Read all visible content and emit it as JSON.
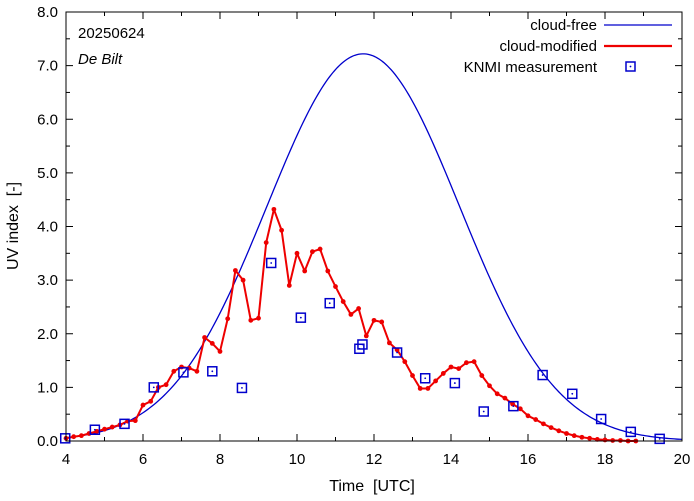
{
  "chart_data": {
    "type": "line",
    "date": "20250624",
    "location": "De Bilt",
    "xlabel": "Time  [UTC]",
    "ylabel": "UV index  [-]",
    "xlim": [
      4,
      20
    ],
    "ylim": [
      0,
      8
    ],
    "x_ticks": [
      4,
      6,
      8,
      10,
      12,
      14,
      16,
      18,
      20
    ],
    "y_ticks": [
      0.0,
      1.0,
      2.0,
      3.0,
      4.0,
      5.0,
      6.0,
      7.0,
      8.0
    ],
    "x_tick_labels": [
      "4",
      "6",
      "8",
      "10",
      "12",
      "14",
      "16",
      "18",
      "20"
    ],
    "y_tick_labels": [
      "0.0",
      "1.0",
      "2.0",
      "3.0",
      "4.0",
      "5.0",
      "6.0",
      "7.0",
      "8.0"
    ],
    "legend": [
      {
        "label": "cloud-free",
        "color": "#0000cc",
        "style": "line"
      },
      {
        "label": "cloud-modified",
        "color": "#ee0000",
        "style": "line-thick"
      },
      {
        "label": "KNMI measurement",
        "color": "#0000cc",
        "style": "square-marker"
      }
    ],
    "series": [
      {
        "name": "cloud-free",
        "color": "#0000cc",
        "model": "gaussian",
        "peak_time": 11.72,
        "peak_value": 7.22,
        "sigma": 2.5,
        "x_range": [
          4,
          20
        ]
      },
      {
        "name": "cloud-modified",
        "color": "#ee0000",
        "x": [
          4.0,
          4.2,
          4.4,
          4.6,
          4.8,
          5.0,
          5.2,
          5.4,
          5.6,
          5.8,
          6.0,
          6.2,
          6.4,
          6.6,
          6.8,
          7.0,
          7.2,
          7.4,
          7.6,
          7.8,
          8.0,
          8.2,
          8.4,
          8.6,
          8.8,
          9.0,
          9.2,
          9.4,
          9.6,
          9.8,
          10.0,
          10.2,
          10.4,
          10.6,
          10.8,
          11.0,
          11.2,
          11.4,
          11.6,
          11.8,
          12.0,
          12.2,
          12.4,
          12.6,
          12.8,
          13.0,
          13.2,
          13.4,
          13.6,
          13.8,
          14.0,
          14.2,
          14.4,
          14.6,
          14.8,
          15.0,
          15.2,
          15.4,
          15.6,
          15.8,
          16.0,
          16.2,
          16.4,
          16.6,
          16.8,
          17.0,
          17.2,
          17.4,
          17.6,
          17.8,
          18.0,
          18.2,
          18.4,
          18.6,
          18.8
        ],
        "values": [
          0.05,
          0.08,
          0.1,
          0.14,
          0.18,
          0.22,
          0.26,
          0.3,
          0.37,
          0.38,
          0.67,
          0.74,
          1.0,
          1.05,
          1.3,
          1.38,
          1.36,
          1.3,
          1.93,
          1.82,
          1.67,
          2.28,
          3.18,
          3.0,
          2.25,
          2.29,
          3.7,
          4.32,
          3.93,
          2.9,
          3.5,
          3.17,
          3.53,
          3.58,
          3.17,
          2.88,
          2.6,
          2.36,
          2.47,
          1.96,
          2.25,
          2.22,
          1.83,
          1.7,
          1.48,
          1.22,
          0.98,
          0.98,
          1.12,
          1.26,
          1.38,
          1.35,
          1.46,
          1.48,
          1.22,
          1.03,
          0.88,
          0.8,
          0.69,
          0.6,
          0.47,
          0.4,
          0.32,
          0.25,
          0.19,
          0.14,
          0.1,
          0.07,
          0.05,
          0.03,
          0.02,
          0.01,
          0.01,
          0.0,
          0.0
        ]
      },
      {
        "name": "KNMI measurement",
        "color": "#0000cc",
        "x": [
          3.98,
          4.75,
          5.52,
          6.28,
          7.05,
          7.8,
          8.57,
          9.33,
          10.1,
          10.85,
          11.62,
          11.7,
          12.6,
          13.33,
          14.1,
          14.85,
          15.62,
          16.38,
          17.15,
          17.9,
          18.67,
          19.42
        ],
        "values": [
          0.05,
          0.21,
          0.32,
          1.0,
          1.28,
          1.3,
          0.99,
          3.32,
          2.3,
          2.57,
          1.72,
          1.8,
          1.65,
          1.17,
          1.08,
          0.55,
          0.65,
          1.23,
          0.88,
          0.41,
          0.17,
          0.04
        ]
      }
    ]
  }
}
